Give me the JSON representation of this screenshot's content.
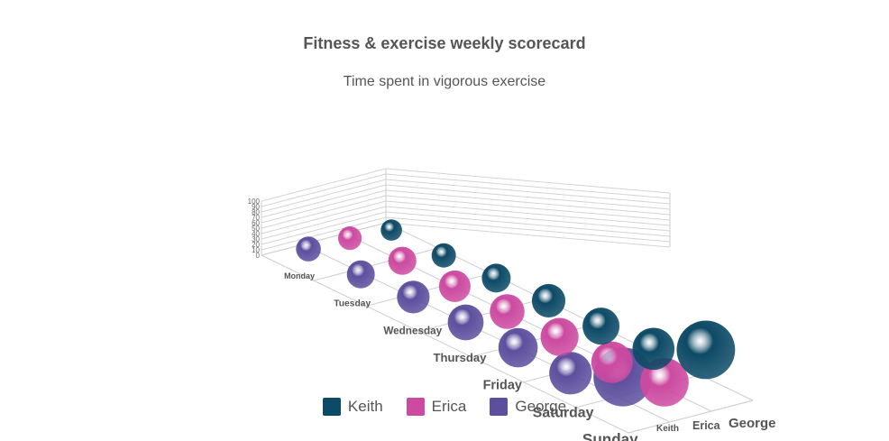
{
  "chart_data": {
    "type": "bubble-3d",
    "title": "Fitness & exercise weekly scorecard",
    "subtitle": "Time spent in vigorous exercise",
    "categories": [
      "Monday",
      "Tuesday",
      "Wednesday",
      "Thursday",
      "Friday",
      "Saturday",
      "Sunday"
    ],
    "z_categories": [
      "Keith",
      "Erica",
      "George"
    ],
    "y_ticks": [
      0,
      10,
      20,
      30,
      40,
      50,
      60,
      70,
      80,
      90,
      100
    ],
    "ylim": [
      0,
      100
    ],
    "grid": true,
    "legend": "bottom-center",
    "series": [
      {
        "name": "Keith",
        "color": "#0d4a66",
        "values": [
          20,
          20,
          25,
          30,
          30,
          35,
          80
        ]
      },
      {
        "name": "Erica",
        "color": "#cc4aa0",
        "values": [
          25,
          30,
          30,
          30,
          30,
          30,
          40
        ]
      },
      {
        "name": "George",
        "color": "#5d4f9e",
        "values": [
          25,
          25,
          30,
          30,
          30,
          30,
          70
        ]
      }
    ]
  }
}
